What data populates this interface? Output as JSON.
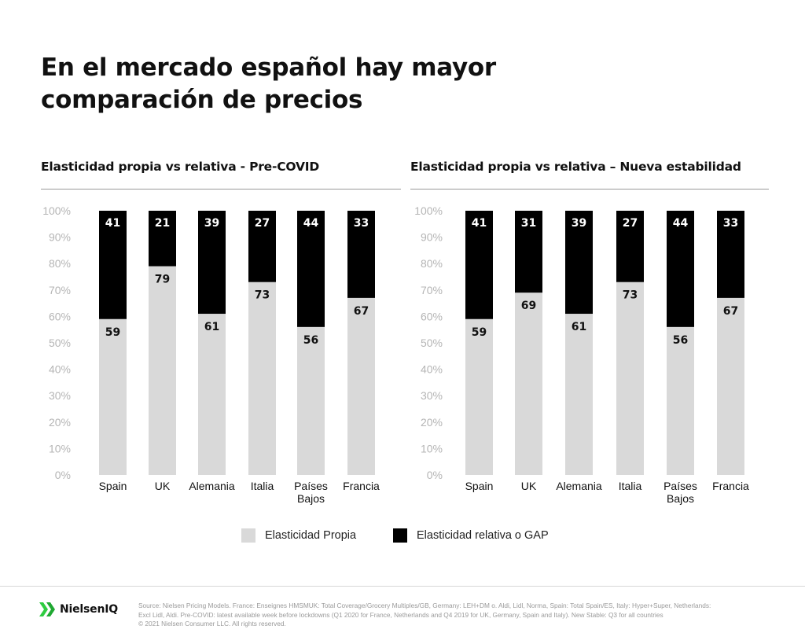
{
  "title_line1": "En el mercado español hay mayor",
  "title_line2": "comparación de precios",
  "colors": {
    "propia": "#d9d9d9",
    "gap": "#000000",
    "axis_text": "#b5b5b5"
  },
  "legend": {
    "propia": "Elasticidad Propia",
    "gap": "Elasticidad relativa o GAP"
  },
  "brand": "NielsenIQ",
  "source": {
    "line1": "Source: Nielsen Pricing Models. France: Enseignes HMSMUK: Total Coverage/Grocery Multiples/GB, Germany: LEH+DM o. Aldi, Lidl, Norma, Spain: Total Spain/ES, Italy: Hyper+Super, Netherlands:",
    "line2": "Excl Lidl, Aldi. Pre-COVID: latest available week before lockdowns (Q1 2020 for France, Netherlands and Q4 2019 for UK, Germany, Spain and Italy). New Stable: Q3 for all countries",
    "line3": "© 2021 Nielsen Consumer LLC. All rights reserved."
  },
  "chart_data": [
    {
      "type": "bar",
      "stacked": true,
      "title": "Elasticidad propia vs relativa - Pre-COVID",
      "categories": [
        [
          "Spain"
        ],
        [
          "UK"
        ],
        [
          "Alemania"
        ],
        [
          "Italia"
        ],
        [
          "Países",
          "Bajos"
        ],
        [
          "Francia"
        ]
      ],
      "yticks": [
        "0%",
        "10%",
        "20%",
        "30%",
        "40%",
        "50%",
        "60%",
        "70%",
        "80%",
        "90%",
        "100%"
      ],
      "ylim": [
        0,
        100
      ],
      "series": [
        {
          "name": "Elasticidad Propia",
          "values": [
            59,
            79,
            61,
            73,
            56,
            67
          ]
        },
        {
          "name": "Elasticidad relativa o GAP",
          "values": [
            41,
            21,
            39,
            27,
            44,
            33
          ]
        }
      ]
    },
    {
      "type": "bar",
      "stacked": true,
      "title": "Elasticidad propia vs relativa – Nueva estabilidad",
      "categories": [
        [
          "Spain"
        ],
        [
          "UK"
        ],
        [
          "Alemania"
        ],
        [
          "Italia"
        ],
        [
          "Países",
          "Bajos"
        ],
        [
          "Francia"
        ]
      ],
      "yticks": [
        "0%",
        "10%",
        "20%",
        "30%",
        "40%",
        "50%",
        "60%",
        "70%",
        "80%",
        "90%",
        "100%"
      ],
      "ylim": [
        0,
        100
      ],
      "series": [
        {
          "name": "Elasticidad Propia",
          "values": [
            59,
            69,
            61,
            73,
            56,
            67
          ]
        },
        {
          "name": "Elasticidad relativa o GAP",
          "values": [
            41,
            31,
            39,
            27,
            44,
            33
          ]
        }
      ]
    }
  ]
}
